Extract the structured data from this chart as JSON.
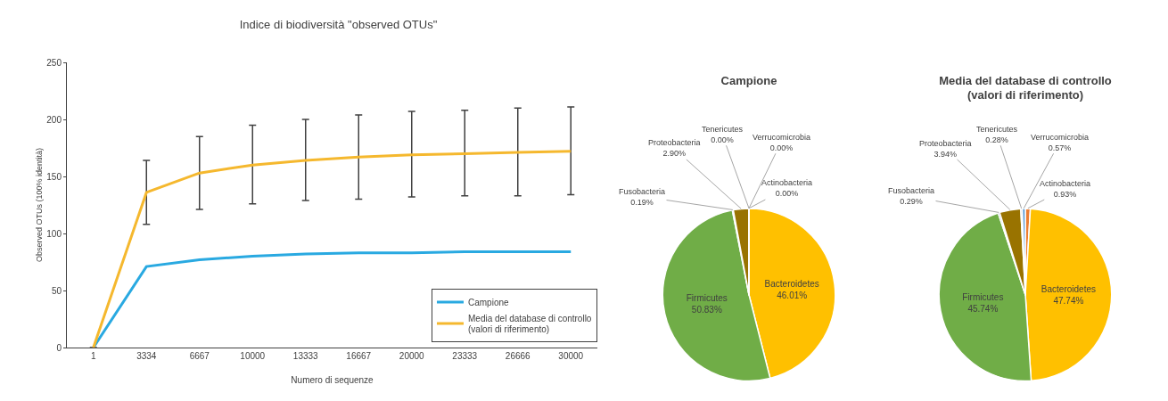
{
  "chart_data": [
    {
      "type": "line",
      "title": "Indice di biodiversità \"observed OTUs\"",
      "xlabel": "Numero di sequenze",
      "ylabel": "Observed OTUs (100% identità)",
      "categories": [
        "1",
        "3334",
        "6667",
        "10000",
        "13333",
        "16667",
        "20000",
        "23333",
        "26666",
        "30000"
      ],
      "series": [
        {
          "name": "Campione",
          "color": "#29a9e1",
          "values": [
            0,
            71,
            77,
            80,
            82,
            83,
            83,
            84,
            84,
            84
          ]
        },
        {
          "name": "Media del database di controllo\n(valori di riferimento)",
          "color": "#f5b82e",
          "values": [
            0,
            136,
            153,
            160,
            164,
            167,
            169,
            170,
            171,
            172
          ],
          "errors": [
            null,
            [
              108,
              164
            ],
            [
              121,
              185
            ],
            [
              126,
              195
            ],
            [
              129,
              200
            ],
            [
              130,
              204
            ],
            [
              132,
              207
            ],
            [
              133,
              208
            ],
            [
              133,
              210
            ],
            [
              134,
              211
            ]
          ]
        }
      ],
      "ylim": [
        0,
        250
      ],
      "yticks": [
        0,
        50,
        100,
        150,
        200,
        250
      ],
      "legend": "bottom right",
      "marker": "none",
      "line_style": "solid"
    },
    {
      "type": "pie",
      "title": "Campione",
      "categories": [
        "Actinobacteria",
        "Bacteroidetes",
        "Firmicutes",
        "Fusobacteria",
        "Proteobacteria",
        "Tenericutes",
        "Verrucomicrobia"
      ],
      "values": [
        0.0,
        46.01,
        50.83,
        0.19,
        2.9,
        0.0,
        0.0
      ],
      "value_labels": [
        "0.00%",
        "46.01%",
        "50.83%",
        "0.19%",
        "2.90%",
        "0.00%",
        "0.00%"
      ],
      "colors": [
        "#ed7d31",
        "#ffc000",
        "#70ad47",
        "#264478",
        "#997300",
        "#a5a5a5",
        "#5b9bd5"
      ]
    },
    {
      "type": "pie",
      "title": "Media del database di controllo\n(valori di riferimento)",
      "categories": [
        "Actinobacteria",
        "Bacteroidetes",
        "Firmicutes",
        "Fusobacteria",
        "Proteobacteria",
        "Tenericutes",
        "Verrucomicrobia"
      ],
      "values": [
        0.93,
        47.74,
        45.74,
        0.29,
        3.94,
        0.28,
        0.57
      ],
      "value_labels": [
        "0.93%",
        "47.74%",
        "45.74%",
        "0.29%",
        "3.94%",
        "0.28%",
        "0.57%"
      ],
      "colors": [
        "#ed7d31",
        "#ffc000",
        "#70ad47",
        "#264478",
        "#997300",
        "#a5a5a5",
        "#5b9bd5"
      ]
    }
  ]
}
